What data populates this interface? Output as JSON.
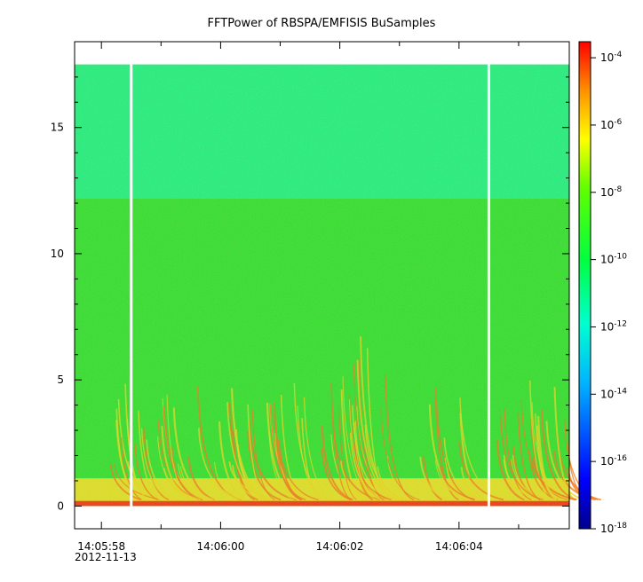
{
  "chart_data": {
    "type": "heatmap",
    "title": "FFTPower of RBSPA/EMFISIS  BuSamples",
    "xlabel": "",
    "ylabel": "",
    "date": "2012-11-13",
    "x_ticks": [
      {
        "label": "14:05:58",
        "t": 0
      },
      {
        "label": "14:06:00",
        "t": 2
      },
      {
        "label": "14:06:02",
        "t": 4
      },
      {
        "label": "14:06:04",
        "t": 6
      }
    ],
    "x_range_seconds_from_140558": [
      -0.45,
      7.85
    ],
    "y_ticks": [
      0,
      5,
      10,
      15
    ],
    "ylim": [
      -0.9,
      18.4
    ],
    "data_freq_range": [
      0,
      17.5
    ],
    "colorbar": {
      "scale": "log",
      "range": [
        1e-18,
        0.0003
      ],
      "tick_labels": [
        {
          "base": "10",
          "exp": "-4",
          "value": 0.0001
        },
        {
          "base": "10",
          "exp": "-6",
          "value": 1e-06
        },
        {
          "base": "10",
          "exp": "-8",
          "value": 1e-08
        },
        {
          "base": "10",
          "exp": "-10",
          "value": 1e-10
        },
        {
          "base": "10",
          "exp": "-12",
          "value": 1e-12
        },
        {
          "base": "10",
          "exp": "-14",
          "value": 1e-14
        },
        {
          "base": "10",
          "exp": "-16",
          "value": 1e-16
        },
        {
          "base": "10",
          "exp": "-18",
          "value": 1e-18
        }
      ]
    },
    "data_gaps_seconds": [
      0.5,
      6.5
    ],
    "band_boundary_freq": 12.2,
    "colors": {
      "upper_band": "#22f07a",
      "lower_band": "#33e02a",
      "low_freq": "#f2e020",
      "line": "#f03a10",
      "gap": "#ffffff"
    }
  }
}
